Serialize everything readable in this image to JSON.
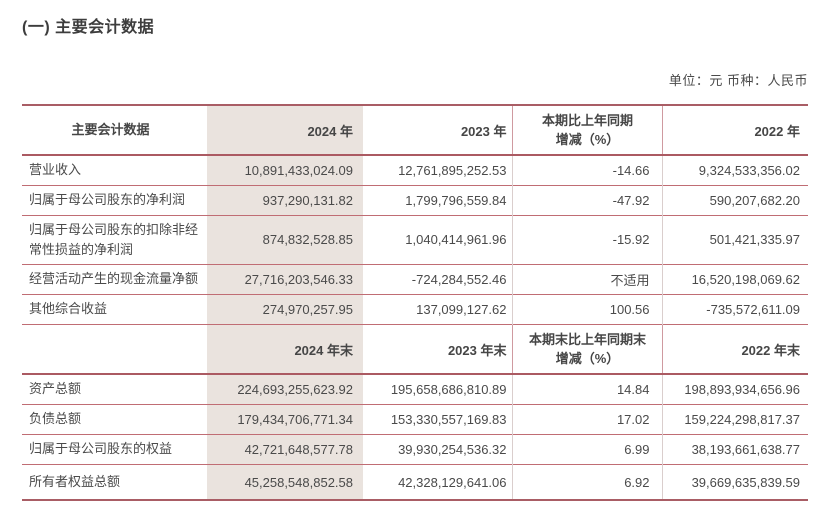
{
  "page": {
    "title": "(一) 主要会计数据",
    "unit_label": "单位：元  币种：人民币"
  },
  "table": {
    "header_col1": "主要会计数据",
    "header1": {
      "y2024": "2024 年",
      "y2023": "2023 年",
      "change_line1": "本期比上年同期",
      "change_line2": "增减（%）",
      "y2022": "2022 年"
    },
    "rows1": [
      {
        "label": "营业收入",
        "v2024": "10,891,433,024.09",
        "v2023": "12,761,895,252.53",
        "chg": "-14.66",
        "v2022": "9,324,533,356.02"
      },
      {
        "label": "归属于母公司股东的净利润",
        "v2024": "937,290,131.82",
        "v2023": "1,799,796,559.84",
        "chg": "-47.92",
        "v2022": "590,207,682.20"
      },
      {
        "label": "归属于母公司股东的扣除非经常性损益的净利润",
        "v2024": "874,832,528.85",
        "v2023": "1,040,414,961.96",
        "chg": "-15.92",
        "v2022": "501,421,335.97"
      },
      {
        "label": "经营活动产生的现金流量净额",
        "v2024": "27,716,203,546.33",
        "v2023": "-724,284,552.46",
        "chg": "不适用",
        "v2022": "16,520,198,069.62"
      },
      {
        "label": "其他综合收益",
        "v2024": "274,970,257.95",
        "v2023": "137,099,127.62",
        "chg": "100.56",
        "v2022": "-735,572,611.09"
      }
    ],
    "header2": {
      "y2024": "2024 年末",
      "y2023": "2023 年末",
      "change_line1": "本期末比上年同期末",
      "change_line2": "增减（%）",
      "y2022": "2022 年末"
    },
    "rows2": [
      {
        "label": "资产总额",
        "v2024": "224,693,255,623.92",
        "v2023": "195,658,686,810.89",
        "chg": "14.84",
        "v2022": "198,893,934,656.96"
      },
      {
        "label": "负债总额",
        "v2024": "179,434,706,771.34",
        "v2023": "153,330,557,169.83",
        "chg": "17.02",
        "v2022": "159,224,298,817.37"
      },
      {
        "label": "归属于母公司股东的权益",
        "v2024": "42,721,648,577.78",
        "v2023": "39,930,254,536.32",
        "chg": "6.99",
        "v2022": "38,193,661,638.77"
      },
      {
        "label": "所有者权益总额",
        "v2024": "45,258,548,852.58",
        "v2023": "42,328,129,641.06",
        "chg": "6.92",
        "v2022": "39,669,635,839.59"
      }
    ]
  },
  "colors": {
    "accent_border": "#b0616a",
    "row_border": "#c06d74",
    "highlight_column_bg": "#eae3de",
    "text": "#4a4a4a"
  }
}
